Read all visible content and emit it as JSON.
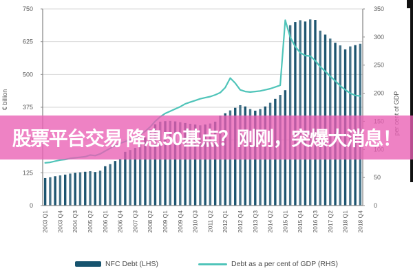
{
  "overlay": {
    "text": "股票平台交易 降息50基点？刚刚，突爆大消息！",
    "band_color": "#e95fb3",
    "text_color": "#ffffff"
  },
  "legend": {
    "items": [
      {
        "label": "NFC Debt (LHS)",
        "swatch": "bar",
        "color": "#16536e"
      },
      {
        "label": "Debt as a per cent of GDP (RHS)",
        "swatch": "line",
        "color": "#4fc4b9"
      }
    ]
  },
  "chart_data": {
    "type": "bar",
    "title": "",
    "grid": true,
    "legend_position": "bottom",
    "categories": [
      "2003 Q1",
      "2003 Q2",
      "2003 Q3",
      "2003 Q4",
      "2004 Q1",
      "2004 Q2",
      "2004 Q3",
      "2004 Q4",
      "2005 Q1",
      "2005 Q2",
      "2005 Q3",
      "2005 Q4",
      "2006 Q1",
      "2006 Q2",
      "2006 Q3",
      "2006 Q4",
      "2007 Q1",
      "2007 Q2",
      "2007 Q3",
      "2007 Q4",
      "2008 Q1",
      "2008 Q2",
      "2008 Q3",
      "2008 Q4",
      "2009 Q1",
      "2009 Q2",
      "2009 Q3",
      "2009 Q4",
      "2010 Q1",
      "2010 Q2",
      "2010 Q3",
      "2010 Q4",
      "2011 Q1",
      "2011 Q2",
      "2011 Q3",
      "2011 Q4",
      "2012 Q1",
      "2012 Q2",
      "2012 Q3",
      "2012 Q4",
      "2013 Q1",
      "2013 Q2",
      "2013 Q3",
      "2013 Q4",
      "2014 Q1",
      "2014 Q2",
      "2014 Q3",
      "2014 Q4",
      "2015 Q1",
      "2015 Q2",
      "2015 Q3",
      "2015 Q4",
      "2016 Q1",
      "2016 Q2",
      "2016 Q3",
      "2016 Q4",
      "2017 Q1",
      "2017 Q2",
      "2017 Q3",
      "2017 Q4",
      "2018 Q1",
      "2018 Q2",
      "2018 Q3",
      "2018 Q4"
    ],
    "x_tick_labels": [
      "2003 Q1",
      "2003 Q4",
      "2004 Q3",
      "2005 Q2",
      "2006 Q1",
      "2006 Q4",
      "2007 Q3",
      "2008 Q2",
      "2009 Q1",
      "2009 Q4",
      "2010 Q3",
      "2011 Q2",
      "2012 Q1",
      "2012 Q4",
      "2013 Q3",
      "2014 Q2",
      "2015 Q1",
      "2015 Q4",
      "2016 Q3",
      "2017 Q2",
      "2018 Q1",
      "2018 Q4"
    ],
    "x_labeled_every": 3,
    "series": [
      {
        "name": "NFC Debt (LHS)",
        "type": "bar",
        "axis": "left",
        "color": "#1d5570",
        "values": [
          105,
          108,
          112,
          115,
          118,
          122,
          125,
          127,
          129,
          131,
          128,
          133,
          150,
          158,
          170,
          178,
          205,
          212,
          220,
          235,
          260,
          290,
          310,
          320,
          322,
          323,
          321,
          318,
          315,
          312,
          309,
          306,
          309,
          313,
          320,
          343,
          352,
          363,
          373,
          383,
          378,
          368,
          362,
          368,
          378,
          392,
          407,
          422,
          440,
          688,
          700,
          707,
          702,
          710,
          708,
          667,
          652,
          637,
          621,
          611,
          596,
          607,
          612,
          617
        ]
      },
      {
        "name": "Debt as a per cent of GDP (RHS)",
        "type": "line",
        "axis": "right",
        "color": "#4fc4b9",
        "values": [
          76,
          77,
          79,
          81,
          82,
          84,
          85,
          86,
          87,
          90,
          89,
          92,
          97,
          102,
          107,
          111,
          114,
          117,
          121,
          126,
          132,
          140,
          150,
          158,
          164,
          168,
          172,
          176,
          181,
          184,
          187,
          190,
          192,
          194,
          197,
          201,
          210,
          227,
          218,
          206,
          203,
          202,
          203,
          204,
          206,
          208,
          211,
          214,
          330,
          300,
          283,
          272,
          267,
          266,
          258,
          247,
          239,
          230,
          222,
          213,
          206,
          200,
          196,
          195
        ]
      }
    ],
    "left_axis": {
      "label": "€ billion",
      "min": 0,
      "max": 750,
      "tick_step": 125,
      "ticks": [
        0,
        125,
        250,
        375,
        500,
        625,
        750
      ]
    },
    "right_axis": {
      "label": "per cent of GDP",
      "min": 0,
      "max": 350,
      "tick_step": 50,
      "ticks": [
        0,
        50,
        100,
        150,
        200,
        250,
        300,
        350
      ]
    }
  }
}
